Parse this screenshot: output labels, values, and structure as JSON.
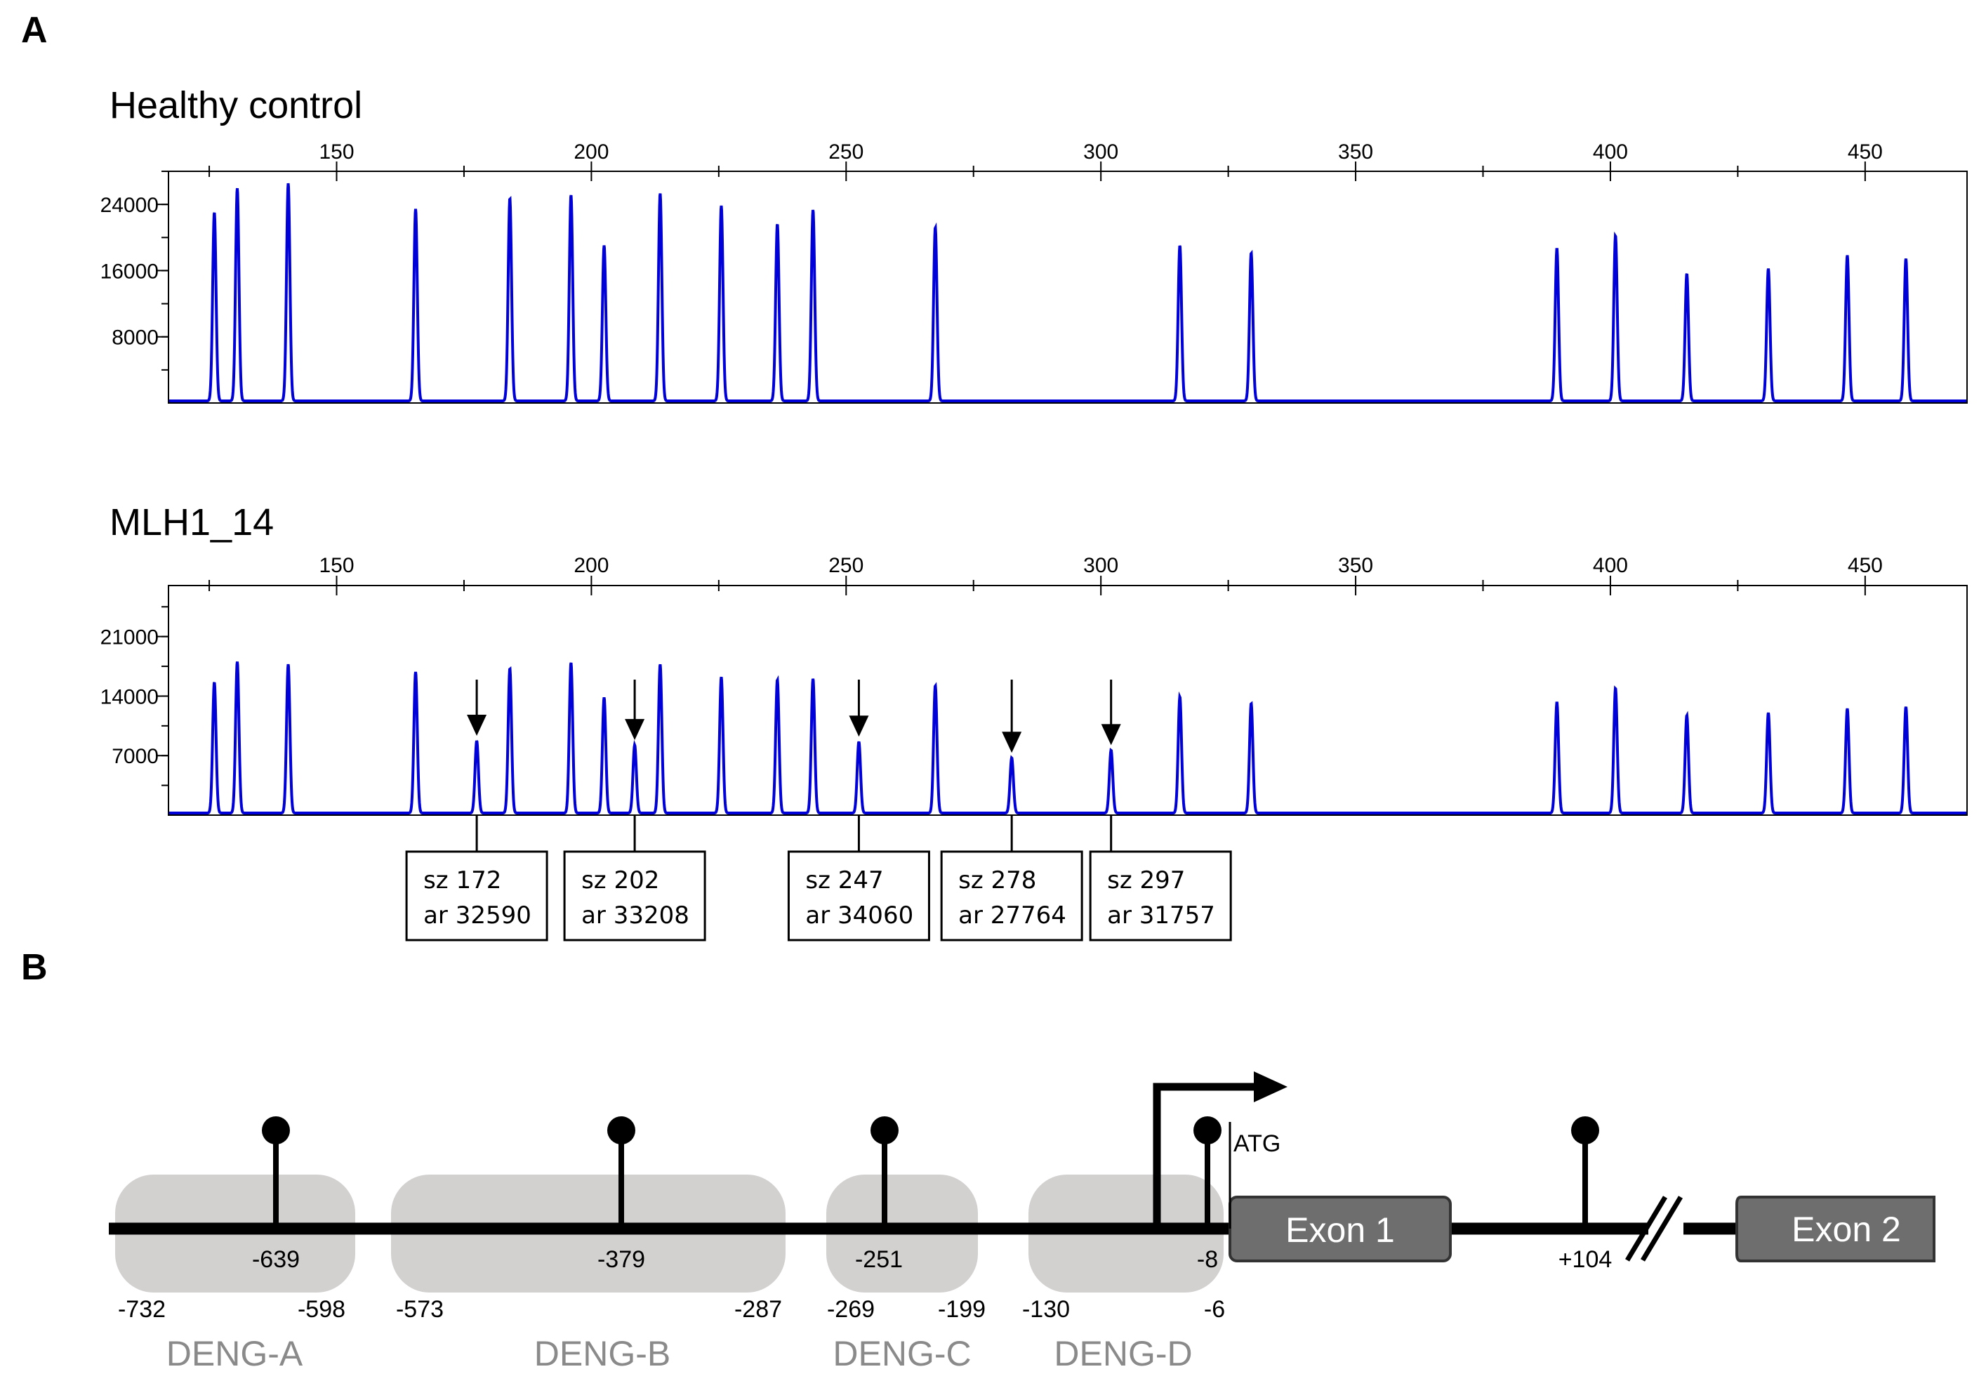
{
  "panels": {
    "a": "A",
    "b": "B"
  },
  "colors": {
    "trace": "#0000d8",
    "region": "#d3d0d0",
    "exon": "#6e6e6e"
  },
  "chart_data": [
    {
      "type": "line",
      "title": "Healthy control",
      "xlim": [
        117,
        470
      ],
      "xticks": [
        150,
        200,
        250,
        300,
        350,
        400,
        450
      ],
      "ylim": [
        0,
        28000
      ],
      "yticks": [
        8000,
        16000,
        24000
      ],
      "peaks": [
        {
          "x": 126,
          "y": 22800
        },
        {
          "x": 130.5,
          "y": 25700
        },
        {
          "x": 140.5,
          "y": 26300
        },
        {
          "x": 165.5,
          "y": 23200
        },
        {
          "x": 184,
          "y": 24500
        },
        {
          "x": 196,
          "y": 24900
        },
        {
          "x": 202.5,
          "y": 18800
        },
        {
          "x": 213.5,
          "y": 25100
        },
        {
          "x": 225.5,
          "y": 23600
        },
        {
          "x": 236.5,
          "y": 21400
        },
        {
          "x": 243.5,
          "y": 23100
        },
        {
          "x": 267.5,
          "y": 21000
        },
        {
          "x": 315.5,
          "y": 18800
        },
        {
          "x": 329.5,
          "y": 17900
        },
        {
          "x": 389.5,
          "y": 18400
        },
        {
          "x": 401,
          "y": 20000
        },
        {
          "x": 415,
          "y": 15400
        },
        {
          "x": 431,
          "y": 16000
        },
        {
          "x": 446.5,
          "y": 17600
        },
        {
          "x": 458,
          "y": 17200
        }
      ]
    },
    {
      "type": "line",
      "title": "MLH1_14",
      "xlim": [
        117,
        470
      ],
      "xticks": [
        150,
        200,
        250,
        300,
        350,
        400,
        450
      ],
      "ylim": [
        0,
        27000
      ],
      "yticks": [
        7000,
        14000,
        21000
      ],
      "peaks": [
        {
          "x": 126,
          "y": 15400
        },
        {
          "x": 130.5,
          "y": 17800
        },
        {
          "x": 140.5,
          "y": 17500
        },
        {
          "x": 165.5,
          "y": 16600
        },
        {
          "x": 177.5,
          "y": 8500
        },
        {
          "x": 184,
          "y": 17000
        },
        {
          "x": 196,
          "y": 17700
        },
        {
          "x": 202.5,
          "y": 13600
        },
        {
          "x": 208.5,
          "y": 8000
        },
        {
          "x": 213.5,
          "y": 17500
        },
        {
          "x": 225.5,
          "y": 16000
        },
        {
          "x": 236.5,
          "y": 15700
        },
        {
          "x": 243.5,
          "y": 15800
        },
        {
          "x": 252.5,
          "y": 8400
        },
        {
          "x": 267.5,
          "y": 15000
        },
        {
          "x": 282.5,
          "y": 6500
        },
        {
          "x": 302,
          "y": 7400
        },
        {
          "x": 315.5,
          "y": 13700
        },
        {
          "x": 329.5,
          "y": 12900
        },
        {
          "x": 389.5,
          "y": 13000
        },
        {
          "x": 401,
          "y": 14700
        },
        {
          "x": 415,
          "y": 11500
        },
        {
          "x": 431,
          "y": 11800
        },
        {
          "x": 446.5,
          "y": 12300
        },
        {
          "x": 458,
          "y": 12500
        }
      ],
      "annotations": [
        {
          "x": 177.5,
          "line1": "sz 172",
          "line2": "ar 32590"
        },
        {
          "x": 208.5,
          "line1": "sz 202",
          "line2": "ar 33208"
        },
        {
          "x": 252.5,
          "line1": "sz 247",
          "line2": "ar 34060"
        },
        {
          "x": 282.5,
          "line1": "sz 278",
          "line2": "ar 27764"
        },
        {
          "x": 302,
          "line1": "sz 297",
          "line2": "ar 31757"
        }
      ]
    }
  ],
  "diagram": {
    "regions": [
      {
        "name": "DENG-A",
        "start": "-732",
        "end": "-598"
      },
      {
        "name": "DENG-B",
        "start": "-573",
        "end": "-287"
      },
      {
        "name": "DENG-C",
        "start": "-269",
        "end": "-199"
      },
      {
        "name": "DENG-D",
        "start": "-130",
        "end": "-6"
      }
    ],
    "sites": [
      "-639",
      "-379",
      "-251",
      "-8",
      "+104"
    ],
    "atg": "ATG",
    "exon1": "Exon 1",
    "exon2": "Exon 2"
  }
}
